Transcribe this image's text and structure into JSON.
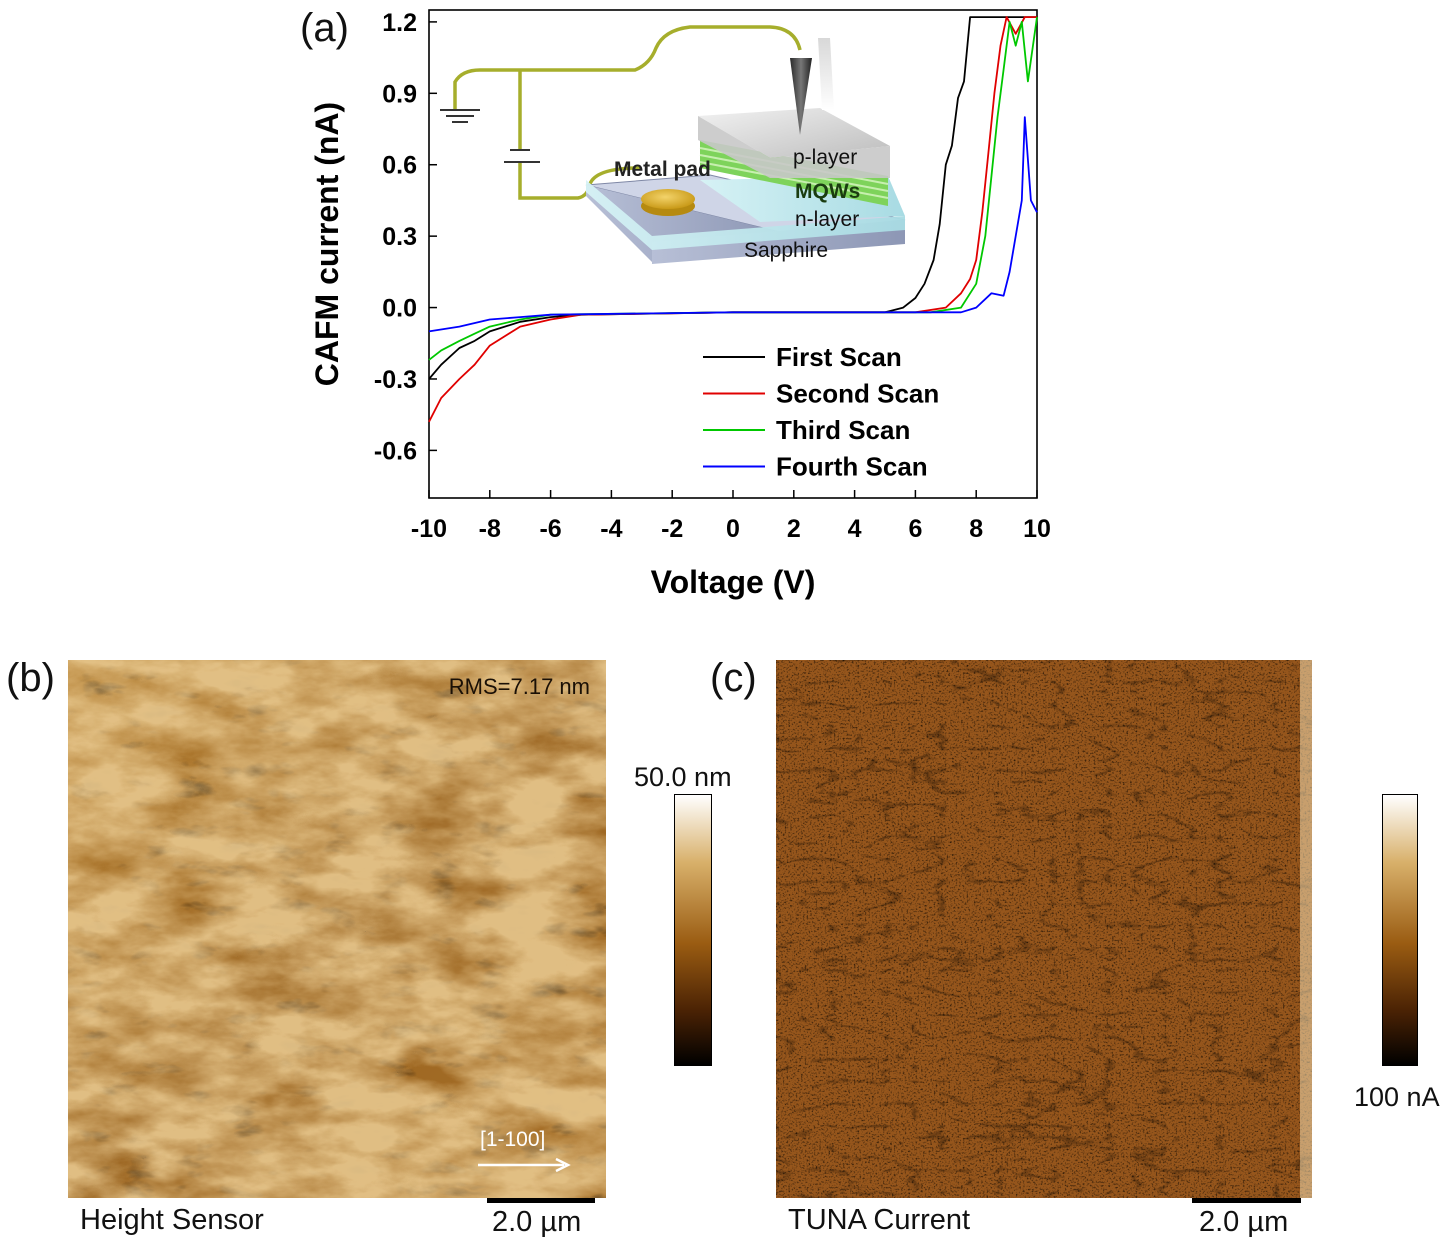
{
  "panel_a": {
    "label": "(a)",
    "inset": {
      "labels": {
        "metal_pad": "Metal pad",
        "p_layer": "p-layer",
        "mqws": "MQWs",
        "n_layer": "n-layer",
        "sapphire": "Sapphire"
      }
    }
  },
  "chart_data": {
    "type": "line",
    "title": "",
    "xlabel": "Voltage (V)",
    "ylabel": "CAFM current (nA)",
    "xlim": [
      -10,
      10
    ],
    "ylim": [
      -0.8,
      1.25
    ],
    "xticks": [
      -10,
      -8,
      -6,
      -4,
      -2,
      0,
      2,
      4,
      6,
      8,
      10
    ],
    "yticks": [
      -0.6,
      -0.3,
      0.0,
      0.3,
      0.6,
      0.9,
      1.2
    ],
    "ytick_labels": [
      "-0.6",
      "-0.3",
      "0.0",
      "0.3",
      "0.6",
      "0.9",
      "1.2"
    ],
    "grid": false,
    "legend": "bottom-right",
    "series": [
      {
        "name": "First Scan",
        "color": "#000000",
        "x": [
          -10,
          -9.6,
          -9.0,
          -8.5,
          -8.0,
          -7.0,
          -6.0,
          -5.0,
          0,
          5.0,
          5.6,
          6.0,
          6.3,
          6.6,
          6.8,
          7.0,
          7.2,
          7.4,
          7.6,
          7.8,
          8.0,
          8.5,
          9.0,
          9.5,
          10
        ],
        "y": [
          -0.3,
          -0.24,
          -0.17,
          -0.14,
          -0.1,
          -0.06,
          -0.04,
          -0.03,
          -0.02,
          -0.02,
          0.0,
          0.04,
          0.1,
          0.2,
          0.35,
          0.6,
          0.68,
          0.88,
          0.95,
          1.22,
          1.22,
          1.22,
          1.22,
          1.22,
          1.22
        ]
      },
      {
        "name": "Second Scan",
        "color": "#e00000",
        "x": [
          -10,
          -9.6,
          -9.0,
          -8.5,
          -8.0,
          -7.0,
          -6.0,
          -5.0,
          0,
          6.0,
          7.0,
          7.5,
          7.8,
          8.0,
          8.2,
          8.4,
          8.6,
          8.8,
          9.0,
          9.3,
          9.6,
          10
        ],
        "y": [
          -0.48,
          -0.38,
          -0.3,
          -0.24,
          -0.16,
          -0.08,
          -0.05,
          -0.03,
          -0.02,
          -0.02,
          0.0,
          0.06,
          0.12,
          0.2,
          0.4,
          0.65,
          0.9,
          1.1,
          1.22,
          1.15,
          1.22,
          1.22
        ]
      },
      {
        "name": "Third Scan",
        "color": "#00c800",
        "x": [
          -10,
          -9.6,
          -9.0,
          -8.5,
          -8.0,
          -7.0,
          -6.0,
          0,
          6.5,
          7.5,
          8.0,
          8.3,
          8.5,
          8.7,
          8.9,
          9.1,
          9.3,
          9.5,
          9.7,
          10
        ],
        "y": [
          -0.22,
          -0.18,
          -0.14,
          -0.11,
          -0.08,
          -0.05,
          -0.03,
          -0.02,
          -0.02,
          0.0,
          0.1,
          0.3,
          0.55,
          0.8,
          1.0,
          1.2,
          1.1,
          1.2,
          0.95,
          1.22
        ]
      },
      {
        "name": "Fourth Scan",
        "color": "#0000ff",
        "x": [
          -10,
          -9.0,
          -8.0,
          -7.0,
          -6.0,
          0,
          7.5,
          8.0,
          8.5,
          8.9,
          9.1,
          9.3,
          9.5,
          9.6,
          9.8,
          10
        ],
        "y": [
          -0.1,
          -0.08,
          -0.05,
          -0.04,
          -0.03,
          -0.02,
          -0.02,
          0.0,
          0.06,
          0.05,
          0.15,
          0.3,
          0.45,
          0.8,
          0.45,
          0.4
        ]
      }
    ]
  },
  "panel_b": {
    "label": "(b)",
    "rms": "RMS=7.17 nm",
    "direction": "[1-100]",
    "caption": "Height Sensor",
    "scale": "2.0 µm",
    "colorbar_max": "50.0 nm"
  },
  "panel_c": {
    "label": "(c)",
    "caption": "TUNA Current",
    "scale": "2.0 µm",
    "colorbar_label": "100 nA"
  }
}
